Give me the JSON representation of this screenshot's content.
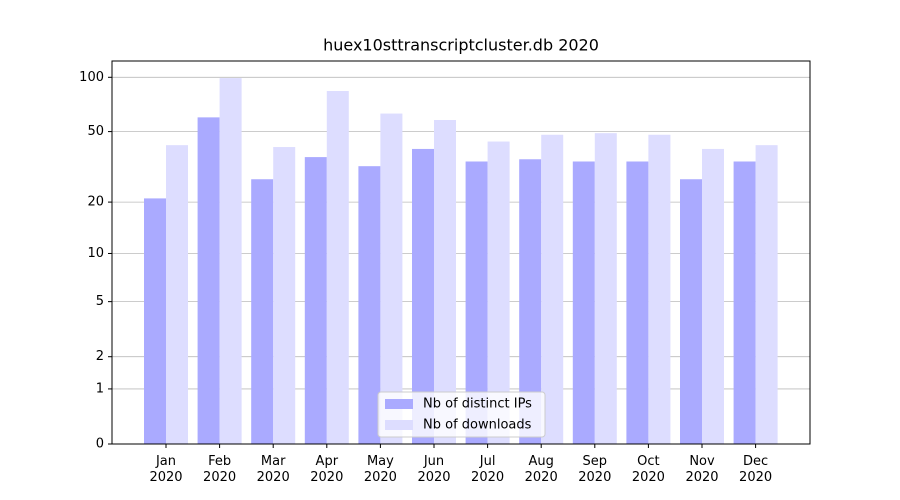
{
  "chart_data": {
    "type": "bar",
    "title": "huex10sttranscriptcluster.db 2020",
    "categories": [
      "Jan 2020",
      "Feb 2020",
      "Mar 2020",
      "Apr 2020",
      "May 2020",
      "Jun 2020",
      "Jul 2020",
      "Aug 2020",
      "Sep 2020",
      "Oct 2020",
      "Nov 2020",
      "Dec 2020"
    ],
    "series": [
      {
        "name": "Nb of distinct IPs",
        "color": "#aaaaff",
        "values": [
          21,
          60,
          27,
          36,
          32,
          40,
          34,
          35,
          34,
          34,
          27,
          34
        ]
      },
      {
        "name": "Nb of downloads",
        "color": "#ddddff",
        "values": [
          42,
          99,
          41,
          84,
          63,
          58,
          44,
          48,
          49,
          48,
          40,
          42
        ]
      }
    ],
    "yscale": "log1p",
    "ylim": [
      0,
      123
    ],
    "yticks": [
      0,
      1,
      2,
      5,
      10,
      20,
      50,
      100
    ],
    "grid": true,
    "legend": "lower center"
  }
}
